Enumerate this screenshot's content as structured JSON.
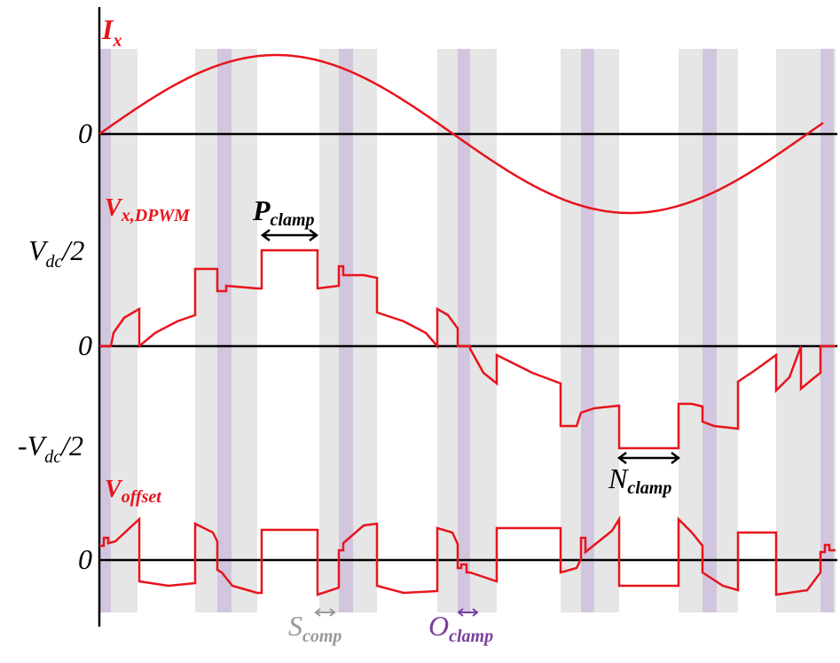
{
  "current": {
    "main": "I",
    "sub": "x"
  },
  "voltage": {
    "main": "V",
    "sub": "x,DPWM"
  },
  "offset": {
    "main": "V",
    "sub": "offset"
  },
  "zero_labels": [
    "0",
    "0",
    "0"
  ],
  "positive_level": {
    "main": "V",
    "sub": "dc",
    "suffix": "/2"
  },
  "negative_level": {
    "prefix": "-",
    "main": "V",
    "sub": "dc",
    "suffix": "/2"
  },
  "p_clamp": {
    "main": "P",
    "sub": "clamp"
  },
  "n_clamp": {
    "main": "N",
    "sub": "clamp"
  },
  "s_comp": {
    "main": "S",
    "sub": "comp"
  },
  "o_clamp": {
    "main": "O",
    "sub": "clamp"
  }
}
